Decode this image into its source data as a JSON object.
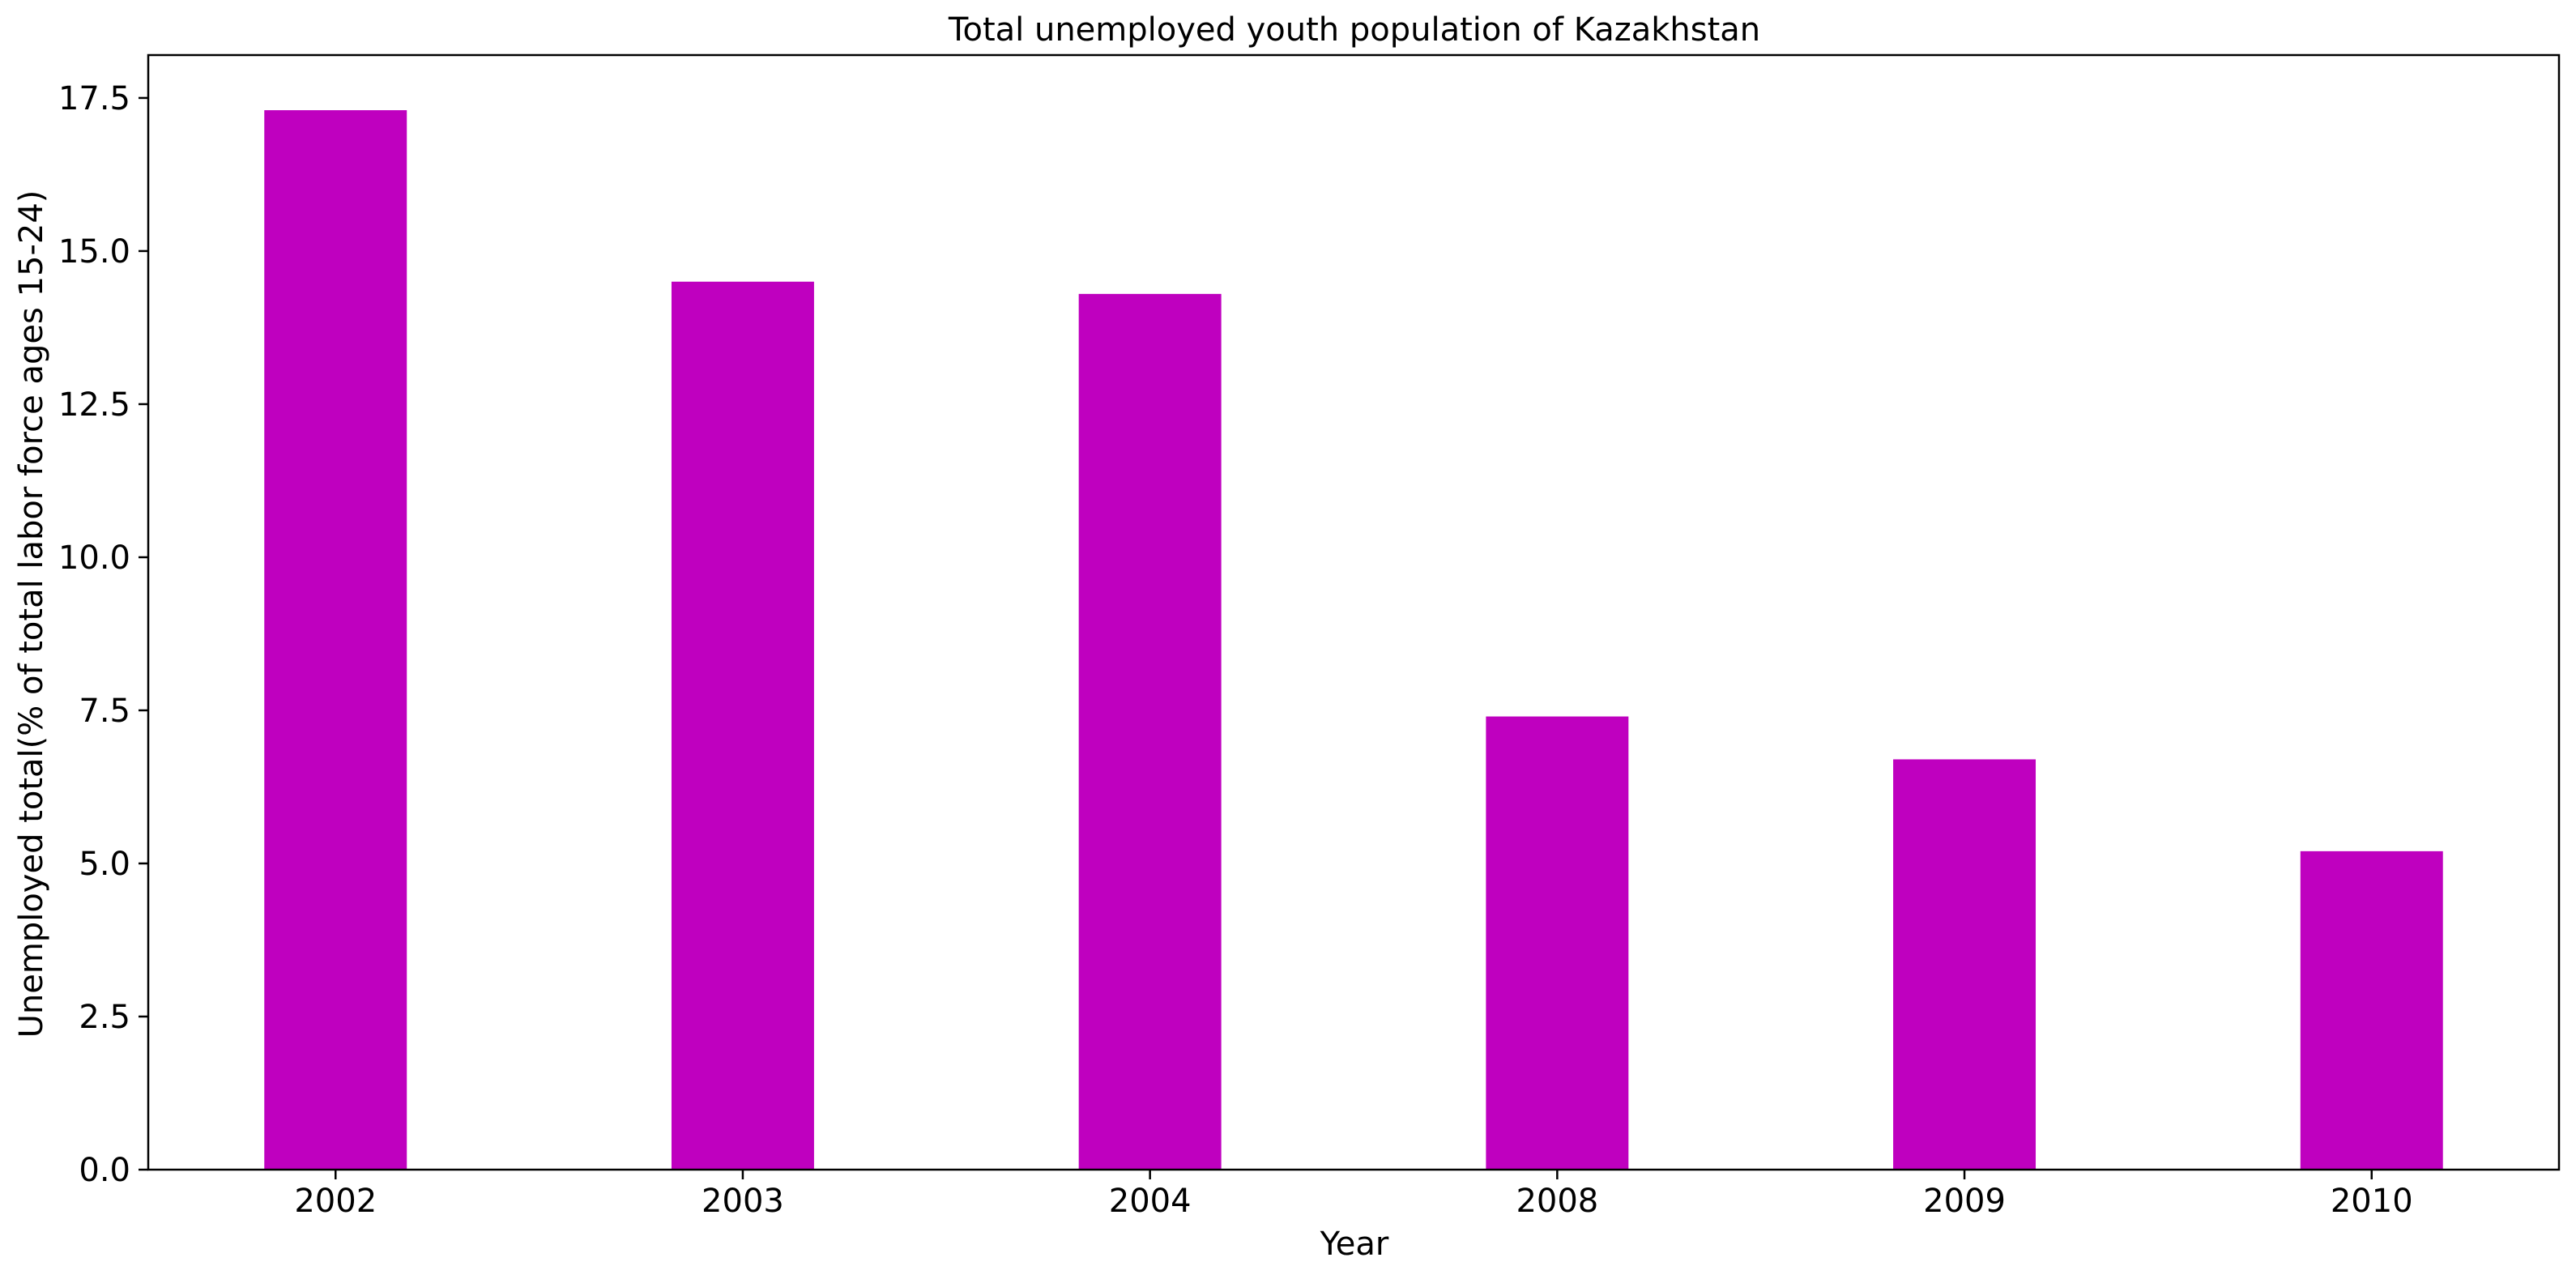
{
  "chart_data": {
    "type": "bar",
    "title": "Total unemployed youth population of Kazakhstan",
    "xlabel": "Year",
    "ylabel": "Unemployed total(% of total labor force ages 15-24)",
    "categories": [
      "2002",
      "2003",
      "2004",
      "2008",
      "2009",
      "2010"
    ],
    "values": [
      17.3,
      14.5,
      14.3,
      7.4,
      6.7,
      5.2
    ],
    "ylim": [
      0,
      18.2
    ],
    "yticks": [
      0.0,
      2.5,
      5.0,
      7.5,
      10.0,
      12.5,
      15.0,
      17.5
    ],
    "ytick_labels": [
      "0.0",
      "2.5",
      "5.0",
      "7.5",
      "10.0",
      "12.5",
      "15.0",
      "17.5"
    ],
    "bar_color": "#bf00bf",
    "grid": false,
    "legend": "none"
  }
}
